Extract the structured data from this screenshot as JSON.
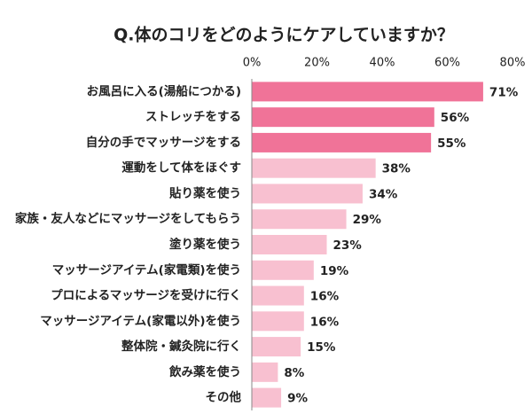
{
  "chart_data": {
    "type": "bar",
    "orientation": "horizontal",
    "title": "Q.体のコリをどのようにケアしていますか？",
    "categories": [
      "お風呂に入る(湯船につかる)",
      "ストレッチをする",
      "自分の手でマッサージをする",
      "運動をして体をほぐす",
      "貼り薬を使う",
      "家族・友人などにマッサージをしてもらう",
      "塗り薬を使う",
      "マッサージアイテム(家電類)を使う",
      "プロによるマッサージを受けに行く",
      "マッサージアイテム(家電以外)を使う",
      "整体院・鍼灸院に行く",
      "飲み薬を使う",
      "その他"
    ],
    "values": [
      71,
      56,
      55,
      38,
      34,
      29,
      23,
      19,
      16,
      16,
      15,
      8,
      9
    ],
    "value_labels": [
      "71%",
      "56%",
      "55%",
      "38%",
      "34%",
      "29%",
      "23%",
      "19%",
      "16%",
      "16%",
      "15%",
      "8%",
      "9%"
    ],
    "colors": [
      "#f07398",
      "#f07398",
      "#f07398",
      "#f8c0d0",
      "#f8c0d0",
      "#f8c0d0",
      "#f8c0d0",
      "#f8c0d0",
      "#f8c0d0",
      "#f8c0d0",
      "#f8c0d0",
      "#f8c0d0",
      "#f8c0d0"
    ],
    "xlim": [
      0,
      80
    ],
    "xticks": [
      {
        "value": 0,
        "label": "0%"
      },
      {
        "value": 20,
        "label": "20%"
      },
      {
        "value": 40,
        "label": "40%"
      },
      {
        "value": 60,
        "label": "60%"
      },
      {
        "value": 80,
        "label": "80%"
      }
    ],
    "grid": false
  }
}
